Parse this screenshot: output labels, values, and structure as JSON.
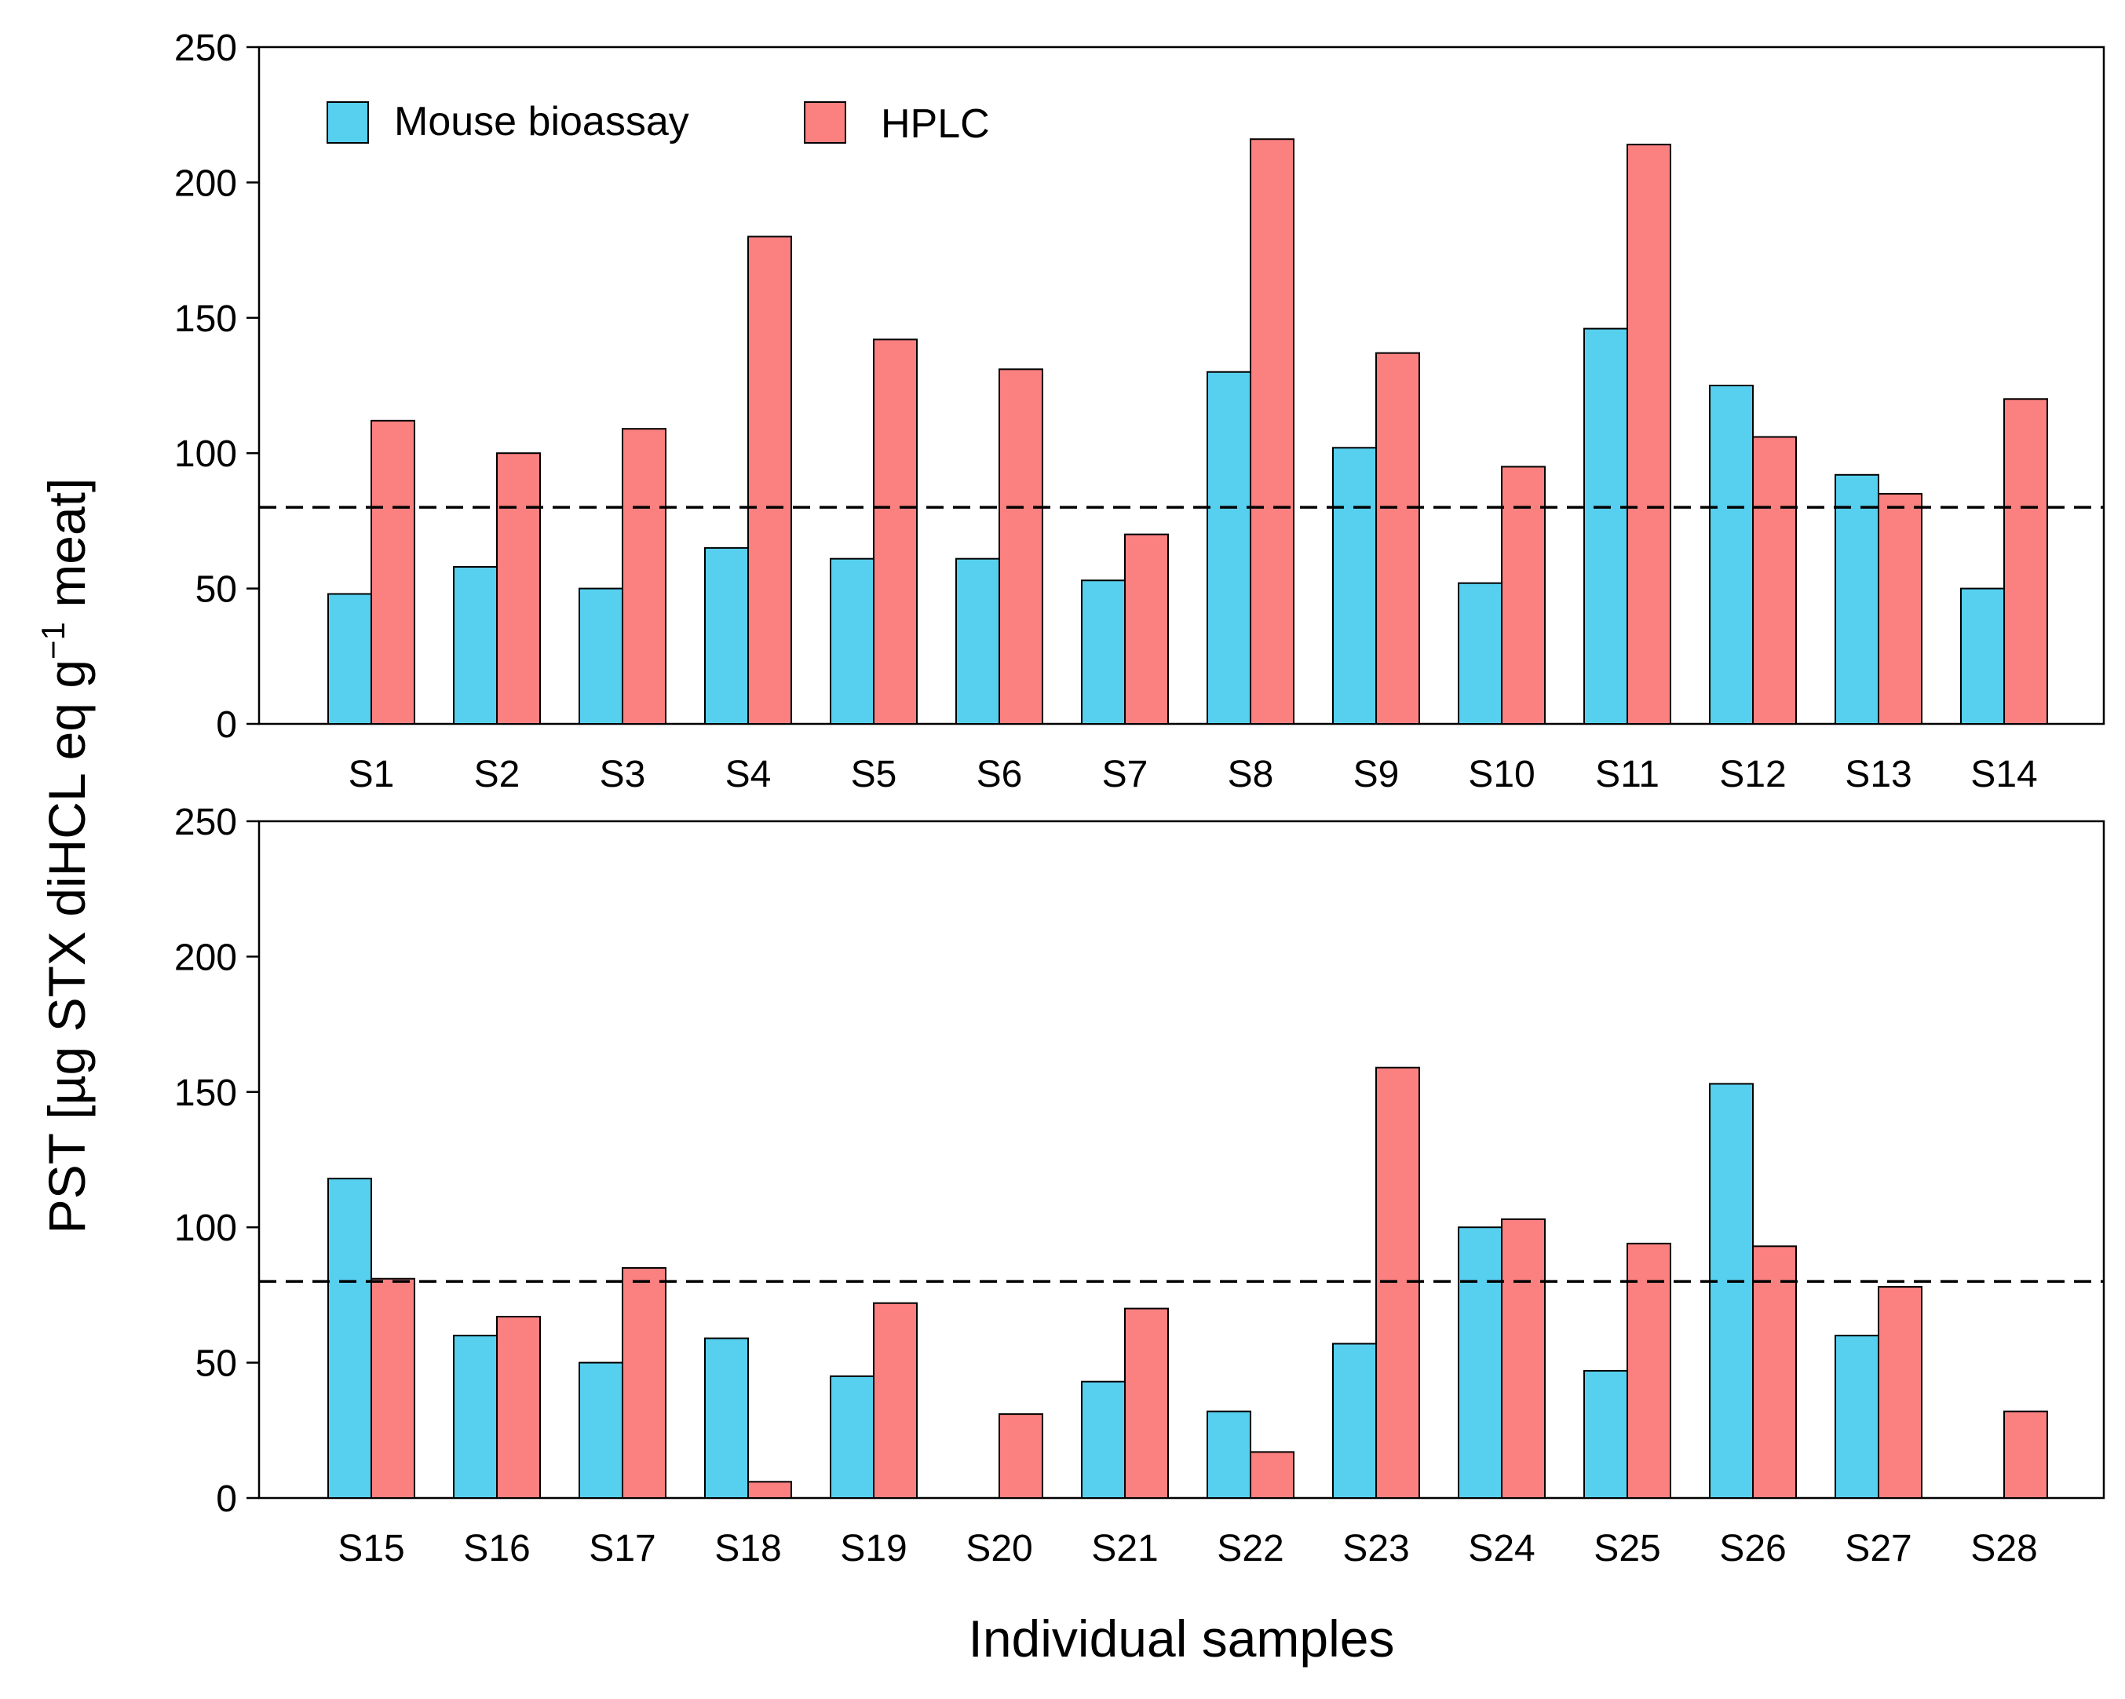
{
  "chart_data": {
    "type": "bar",
    "ylabel_main": "PST [µg STX diHCL eq g",
    "ylabel_sup": "−1",
    "ylabel_tail": " meat]",
    "xlabel": "Individual samples",
    "ylim": [
      0,
      250
    ],
    "yticks": [
      0,
      50,
      100,
      150,
      200,
      250
    ],
    "reference_line": 80,
    "colors": {
      "mouse_bioassay": "#57cfee",
      "hplc": "#fb8080"
    },
    "legend": [
      "Mouse bioassay",
      "HPLC"
    ],
    "panels": [
      {
        "categories": [
          "S1",
          "S2",
          "S3",
          "S4",
          "S5",
          "S6",
          "S7",
          "S8",
          "S9",
          "S10",
          "S11",
          "S12",
          "S13",
          "S14"
        ],
        "series": [
          {
            "name": "Mouse bioassay",
            "values": [
              48,
              58,
              50,
              65,
              61,
              61,
              53,
              130,
              102,
              52,
              146,
              125,
              92,
              50
            ]
          },
          {
            "name": "HPLC",
            "values": [
              112,
              100,
              109,
              180,
              142,
              131,
              70,
              216,
              137,
              95,
              214,
              106,
              85,
              120
            ]
          }
        ]
      },
      {
        "categories": [
          "S15",
          "S16",
          "S17",
          "S18",
          "S19",
          "S20",
          "S21",
          "S22",
          "S23",
          "S24",
          "S25",
          "S26",
          "S27",
          "S28"
        ],
        "series": [
          {
            "name": "Mouse bioassay",
            "values": [
              118,
              60,
              50,
              59,
              45,
              0,
              43,
              32,
              57,
              100,
              47,
              153,
              60,
              0
            ]
          },
          {
            "name": "HPLC",
            "values": [
              81,
              67,
              85,
              6,
              72,
              31,
              70,
              17,
              159,
              103,
              94,
              93,
              78,
              32
            ]
          }
        ]
      }
    ]
  }
}
